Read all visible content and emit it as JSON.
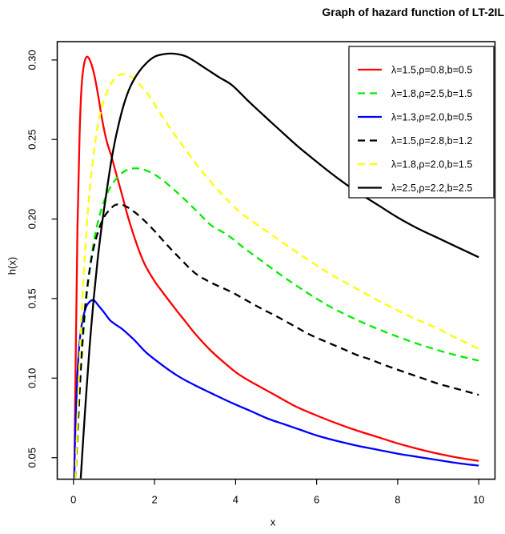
{
  "chart_data": {
    "type": "line",
    "title": "Graph of hazard function of LT-2IL",
    "xlabel": "x",
    "ylabel": "h(x)",
    "xlim": [
      0,
      10
    ],
    "ylim": [
      0.0365,
      0.3115
    ],
    "x_ticks": [
      0,
      2,
      4,
      6,
      8,
      10
    ],
    "x_tick_labels": [
      "0",
      "2",
      "4",
      "6",
      "8",
      "10"
    ],
    "y_ticks": [
      0.05,
      0.1,
      0.15,
      0.2,
      0.25,
      0.3
    ],
    "y_tick_labels": [
      "0.05",
      "0.10",
      "0.15",
      "0.20",
      "0.25",
      "0.30"
    ],
    "grid": false,
    "legend_position": "top-right",
    "frame_color": "#000000",
    "series": [
      {
        "label": "λ=1.5,ρ=0.8,b=0.5",
        "color": "#ff0000",
        "dash": "solid",
        "points": [
          [
            0.02,
            0.037
          ],
          [
            0.06,
            0.12
          ],
          [
            0.1,
            0.195
          ],
          [
            0.15,
            0.252
          ],
          [
            0.2,
            0.283
          ],
          [
            0.26,
            0.297
          ],
          [
            0.33,
            0.302
          ],
          [
            0.42,
            0.299
          ],
          [
            0.52,
            0.29
          ],
          [
            0.62,
            0.276
          ],
          [
            0.72,
            0.261
          ],
          [
            0.82,
            0.249
          ],
          [
            0.93,
            0.24
          ],
          [
            1.05,
            0.229
          ],
          [
            1.18,
            0.217
          ],
          [
            1.35,
            0.201
          ],
          [
            1.55,
            0.185
          ],
          [
            1.75,
            0.172
          ],
          [
            2.0,
            0.161
          ],
          [
            2.2,
            0.154
          ],
          [
            2.5,
            0.144
          ],
          [
            2.75,
            0.136
          ],
          [
            3.0,
            0.128
          ],
          [
            3.4,
            0.117
          ],
          [
            3.8,
            0.108
          ],
          [
            4.1,
            0.102
          ],
          [
            4.5,
            0.096
          ],
          [
            5.0,
            0.089
          ],
          [
            5.5,
            0.082
          ],
          [
            6.0,
            0.0765
          ],
          [
            6.5,
            0.0715
          ],
          [
            7.0,
            0.067
          ],
          [
            7.5,
            0.063
          ],
          [
            8.0,
            0.059
          ],
          [
            8.5,
            0.0555
          ],
          [
            9.0,
            0.0525
          ],
          [
            9.5,
            0.05
          ],
          [
            10.0,
            0.048
          ]
        ]
      },
      {
        "label": "λ=1.8,ρ=2.5,b=1.5",
        "color": "#00ee00",
        "dash": "dashed",
        "points": [
          [
            0.05,
            0.037
          ],
          [
            0.12,
            0.075
          ],
          [
            0.2,
            0.112
          ],
          [
            0.3,
            0.145
          ],
          [
            0.42,
            0.172
          ],
          [
            0.55,
            0.192
          ],
          [
            0.7,
            0.207
          ],
          [
            0.85,
            0.217
          ],
          [
            1.0,
            0.2235
          ],
          [
            1.2,
            0.229
          ],
          [
            1.4,
            0.2315
          ],
          [
            1.6,
            0.2318
          ],
          [
            1.8,
            0.2305
          ],
          [
            2.0,
            0.228
          ],
          [
            2.2,
            0.2245
          ],
          [
            2.5,
            0.218
          ],
          [
            2.8,
            0.211
          ],
          [
            3.1,
            0.2035
          ],
          [
            3.4,
            0.196
          ],
          [
            3.8,
            0.19
          ],
          [
            4.2,
            0.182
          ],
          [
            4.6,
            0.1745
          ],
          [
            5.0,
            0.167
          ],
          [
            5.45,
            0.159
          ],
          [
            5.9,
            0.1515
          ],
          [
            6.4,
            0.144
          ],
          [
            7.0,
            0.1365
          ],
          [
            7.5,
            0.131
          ],
          [
            8.0,
            0.126
          ],
          [
            8.5,
            0.1215
          ],
          [
            9.0,
            0.1175
          ],
          [
            9.5,
            0.114
          ],
          [
            10.0,
            0.111
          ]
        ]
      },
      {
        "label": "λ=1.3,ρ=2.0,b=0.5",
        "color": "#0000ff",
        "dash": "solid",
        "points": [
          [
            0.02,
            0.037
          ],
          [
            0.05,
            0.07
          ],
          [
            0.1,
            0.103
          ],
          [
            0.15,
            0.122
          ],
          [
            0.2,
            0.133
          ],
          [
            0.3,
            0.144
          ],
          [
            0.4,
            0.148
          ],
          [
            0.5,
            0.149
          ],
          [
            0.62,
            0.1455
          ],
          [
            0.75,
            0.1415
          ],
          [
            0.9,
            0.1365
          ],
          [
            1.05,
            0.1335
          ],
          [
            1.22,
            0.1305
          ],
          [
            1.5,
            0.124
          ],
          [
            1.8,
            0.116
          ],
          [
            2.2,
            0.108
          ],
          [
            2.6,
            0.101
          ],
          [
            3.0,
            0.0955
          ],
          [
            3.4,
            0.0905
          ],
          [
            3.9,
            0.0845
          ],
          [
            4.4,
            0.079
          ],
          [
            4.8,
            0.0745
          ],
          [
            5.2,
            0.071
          ],
          [
            5.6,
            0.0675
          ],
          [
            6.0,
            0.064
          ],
          [
            6.5,
            0.0605
          ],
          [
            7.0,
            0.0575
          ],
          [
            7.5,
            0.055
          ],
          [
            8.0,
            0.0525
          ],
          [
            8.5,
            0.0505
          ],
          [
            9.0,
            0.0485
          ],
          [
            9.5,
            0.0465
          ],
          [
            10.0,
            0.045
          ]
        ]
      },
      {
        "label": "λ=1.5,ρ=2.8,b=1.2",
        "color": "#000000",
        "dash": "dashed",
        "points": [
          [
            0.05,
            0.037
          ],
          [
            0.1,
            0.065
          ],
          [
            0.16,
            0.095
          ],
          [
            0.22,
            0.122
          ],
          [
            0.3,
            0.148
          ],
          [
            0.4,
            0.168
          ],
          [
            0.5,
            0.182
          ],
          [
            0.62,
            0.193
          ],
          [
            0.75,
            0.201
          ],
          [
            0.9,
            0.206
          ],
          [
            1.05,
            0.209
          ],
          [
            1.25,
            0.2085
          ],
          [
            1.5,
            0.2045
          ],
          [
            1.75,
            0.199
          ],
          [
            2.0,
            0.1925
          ],
          [
            2.3,
            0.184
          ],
          [
            2.6,
            0.176
          ],
          [
            3.0,
            0.166
          ],
          [
            3.4,
            0.16
          ],
          [
            3.87,
            0.1545
          ],
          [
            4.26,
            0.149
          ],
          [
            4.65,
            0.1435
          ],
          [
            5.0,
            0.139
          ],
          [
            5.5,
            0.132
          ],
          [
            5.9,
            0.1265
          ],
          [
            6.5,
            0.12
          ],
          [
            7.0,
            0.1145
          ],
          [
            7.3,
            0.112
          ],
          [
            7.7,
            0.108
          ],
          [
            8.2,
            0.1035
          ],
          [
            8.6,
            0.1
          ],
          [
            9.0,
            0.0965
          ],
          [
            9.5,
            0.093
          ],
          [
            10.0,
            0.0895
          ]
        ]
      },
      {
        "label": "λ=1.8,ρ=2.0,b=1.5",
        "color": "#ffff00",
        "dash": "dashed",
        "points": [
          [
            0.05,
            0.037
          ],
          [
            0.12,
            0.09
          ],
          [
            0.2,
            0.14
          ],
          [
            0.3,
            0.185
          ],
          [
            0.4,
            0.218
          ],
          [
            0.52,
            0.245
          ],
          [
            0.65,
            0.265
          ],
          [
            0.8,
            0.278
          ],
          [
            0.95,
            0.286
          ],
          [
            1.1,
            0.29
          ],
          [
            1.25,
            0.291
          ],
          [
            1.45,
            0.289
          ],
          [
            1.65,
            0.284
          ],
          [
            1.85,
            0.278
          ],
          [
            2.1,
            0.268
          ],
          [
            2.4,
            0.2565
          ],
          [
            2.7,
            0.246
          ],
          [
            3.0,
            0.2355
          ],
          [
            3.3,
            0.226
          ],
          [
            3.7,
            0.2145
          ],
          [
            4.1,
            0.2045
          ],
          [
            4.5,
            0.197
          ],
          [
            4.9,
            0.19
          ],
          [
            5.4,
            0.181
          ],
          [
            5.9,
            0.1725
          ],
          [
            6.4,
            0.1645
          ],
          [
            7.0,
            0.156
          ],
          [
            7.5,
            0.149
          ],
          [
            8.0,
            0.1425
          ],
          [
            8.5,
            0.1365
          ],
          [
            9.0,
            0.131
          ],
          [
            9.5,
            0.1245
          ],
          [
            10.0,
            0.1185
          ]
        ]
      },
      {
        "label": "λ=2.5,ρ=2.2,b=2.5",
        "color": "#000000",
        "dash": "solid",
        "points": [
          [
            0.18,
            0.037
          ],
          [
            0.25,
            0.065
          ],
          [
            0.32,
            0.092
          ],
          [
            0.4,
            0.12
          ],
          [
            0.5,
            0.15
          ],
          [
            0.6,
            0.175
          ],
          [
            0.7,
            0.196
          ],
          [
            0.8,
            0.214
          ],
          [
            0.93,
            0.236
          ],
          [
            1.05,
            0.252
          ],
          [
            1.22,
            0.27
          ],
          [
            1.4,
            0.283
          ],
          [
            1.6,
            0.292
          ],
          [
            1.8,
            0.298
          ],
          [
            2.0,
            0.302
          ],
          [
            2.2,
            0.3035
          ],
          [
            2.4,
            0.304
          ],
          [
            2.6,
            0.3035
          ],
          [
            2.8,
            0.302
          ],
          [
            3.0,
            0.299
          ],
          [
            3.3,
            0.294
          ],
          [
            3.6,
            0.289
          ],
          [
            3.92,
            0.284
          ],
          [
            4.3,
            0.2745
          ],
          [
            4.7,
            0.265
          ],
          [
            5.0,
            0.258
          ],
          [
            5.5,
            0.2465
          ],
          [
            6.0,
            0.236
          ],
          [
            6.5,
            0.226
          ],
          [
            7.0,
            0.217
          ],
          [
            7.5,
            0.209
          ],
          [
            8.0,
            0.201
          ],
          [
            8.5,
            0.194
          ],
          [
            9.0,
            0.188
          ],
          [
            9.5,
            0.182
          ],
          [
            10.0,
            0.176
          ]
        ]
      }
    ]
  }
}
